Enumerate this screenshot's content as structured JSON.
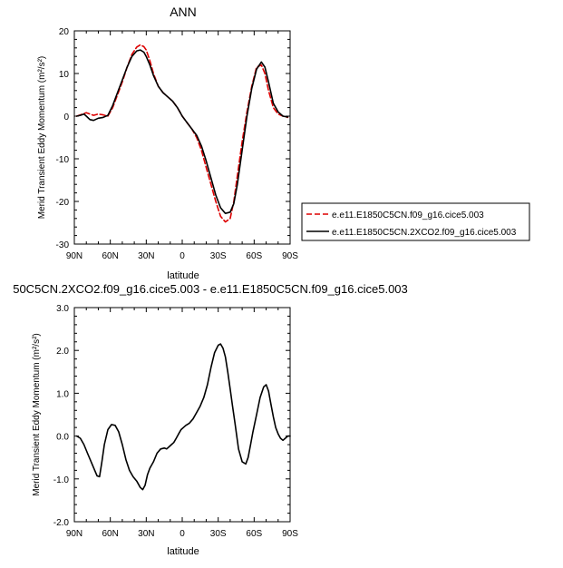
{
  "chart_data": [
    {
      "type": "line",
      "title": "ANN",
      "xlabel": "latitude",
      "ylabel": "Merid Transient Eddy Momentum (m²/s²)",
      "xlim": [
        90,
        -90
      ],
      "ylim": [
        -30,
        20
      ],
      "x_ticks": [
        90,
        60,
        30,
        0,
        -30,
        -60,
        -90
      ],
      "x_tick_labels": [
        "90N",
        "60N",
        "30N",
        "0",
        "30S",
        "60S",
        "90S"
      ],
      "y_ticks": [
        -30,
        -20,
        -10,
        0,
        10,
        20
      ],
      "y_tick_labels": [
        "-30",
        "-20",
        "-10",
        "0",
        "10",
        "20"
      ],
      "grid": false,
      "legend_position": "right",
      "series": [
        {
          "name": "e.e11.E1850C5CN.f09_g16.cice5.003",
          "color": "#dd0000",
          "dash": "dashed",
          "x": [
            88,
            85,
            80,
            77,
            74,
            70,
            66,
            62,
            58,
            54,
            50,
            46,
            42,
            38,
            35,
            32,
            30,
            27,
            24,
            20,
            16,
            12,
            8,
            4,
            2,
            0,
            -4,
            -8,
            -12,
            -16,
            -20,
            -24,
            -28,
            -32,
            -36,
            -40,
            -43,
            -46,
            -50,
            -54,
            -58,
            -62,
            -66,
            -69,
            -72,
            -76,
            -80,
            -84,
            -88
          ],
          "y": [
            0,
            0.3,
            0.8,
            0.5,
            0.2,
            0.5,
            0.3,
            0,
            2,
            5,
            8,
            11.5,
            14.5,
            16.2,
            16.7,
            16.3,
            15.5,
            13,
            10,
            7,
            5.5,
            4.5,
            3.5,
            2,
            1,
            0,
            -1.5,
            -3,
            -5,
            -8,
            -12,
            -16,
            -20,
            -23.5,
            -24.8,
            -24,
            -20,
            -14,
            -6,
            1,
            7,
            11.5,
            12,
            10,
            6,
            2,
            0.5,
            0,
            -0.3
          ]
        },
        {
          "name": "e.e11.E1850C5CN.2XCO2.f09_g16.cice5.003",
          "color": "#000000",
          "dash": "solid",
          "x": [
            88,
            85,
            82,
            80,
            77,
            74,
            70,
            66,
            62,
            58,
            54,
            50,
            46,
            42,
            38,
            35,
            32,
            30,
            27,
            24,
            20,
            16,
            12,
            8,
            4,
            2,
            0,
            -4,
            -8,
            -12,
            -16,
            -20,
            -24,
            -28,
            -32,
            -36,
            -40,
            -43,
            -46,
            -50,
            -54,
            -58,
            -62,
            -66,
            -69,
            -72,
            -76,
            -80,
            -84,
            -88
          ],
          "y": [
            0,
            0.2,
            0.5,
            0,
            -0.8,
            -1,
            -0.5,
            -0.3,
            0.2,
            2.5,
            5.5,
            8.5,
            11.5,
            14,
            15.3,
            15.5,
            15,
            14,
            12,
            9.5,
            7,
            5.5,
            4.5,
            3.5,
            2,
            1,
            0,
            -1.5,
            -3,
            -4.5,
            -7,
            -10.5,
            -14.5,
            -18.5,
            -21.5,
            -22.8,
            -22.5,
            -20.5,
            -16,
            -8,
            0,
            6.5,
            11,
            12.7,
            11.5,
            8,
            3,
            1,
            0,
            -0.2
          ]
        }
      ]
    },
    {
      "type": "line",
      "title": "50C5CN.2XCO2.f09_g16.cice5.003 - e.e11.E1850C5CN.f09_g16.cice5.003",
      "xlabel": "latitude",
      "ylabel": "Merid Transient Eddy Momentum (m²/s²)",
      "xlim": [
        90,
        -90
      ],
      "ylim": [
        -2,
        3
      ],
      "x_ticks": [
        90,
        60,
        30,
        0,
        -30,
        -60,
        -90
      ],
      "x_tick_labels": [
        "90N",
        "60N",
        "30N",
        "0",
        "30S",
        "60S",
        "90S"
      ],
      "y_ticks": [
        -2,
        -1,
        0,
        1,
        2,
        3
      ],
      "y_tick_labels": [
        "-2.0",
        "-1.0",
        "0.0",
        "1.0",
        "2.0",
        "3.0"
      ],
      "grid": false,
      "series": [
        {
          "color": "#000000",
          "dash": "solid",
          "x": [
            88,
            85,
            82,
            79,
            76,
            73,
            71,
            69,
            67,
            65,
            62,
            59,
            56,
            53,
            50,
            47,
            44,
            41,
            38,
            35,
            33,
            31,
            29,
            27,
            24,
            21,
            18,
            15,
            13,
            11,
            9,
            7,
            5,
            3,
            1,
            -1,
            -3,
            -6,
            -9,
            -12,
            -15,
            -18,
            -21,
            -24,
            -27,
            -30,
            -32,
            -34,
            -36,
            -38,
            -40,
            -42,
            -44,
            -47,
            -50,
            -53,
            -55,
            -57,
            -59,
            -62,
            -65,
            -68,
            -70,
            -72,
            -74,
            -76,
            -78,
            -80,
            -82,
            -84,
            -86,
            -88,
            -90
          ],
          "y": [
            0,
            -0.05,
            -0.2,
            -0.4,
            -0.6,
            -0.8,
            -0.93,
            -0.95,
            -0.6,
            -0.2,
            0.15,
            0.27,
            0.25,
            0.1,
            -0.2,
            -0.55,
            -0.8,
            -0.95,
            -1.05,
            -1.2,
            -1.25,
            -1.15,
            -0.9,
            -0.75,
            -0.6,
            -0.4,
            -0.3,
            -0.28,
            -0.3,
            -0.25,
            -0.2,
            -0.15,
            -0.05,
            0.05,
            0.15,
            0.2,
            0.25,
            0.3,
            0.4,
            0.55,
            0.7,
            0.9,
            1.2,
            1.6,
            1.95,
            2.12,
            2.15,
            2.05,
            1.85,
            1.5,
            1.1,
            0.7,
            0.3,
            -0.3,
            -0.6,
            -0.65,
            -0.5,
            -0.2,
            0.1,
            0.5,
            0.9,
            1.15,
            1.2,
            1.05,
            0.75,
            0.45,
            0.2,
            0.05,
            -0.05,
            -0.1,
            -0.05,
            0,
            0
          ]
        }
      ]
    }
  ]
}
